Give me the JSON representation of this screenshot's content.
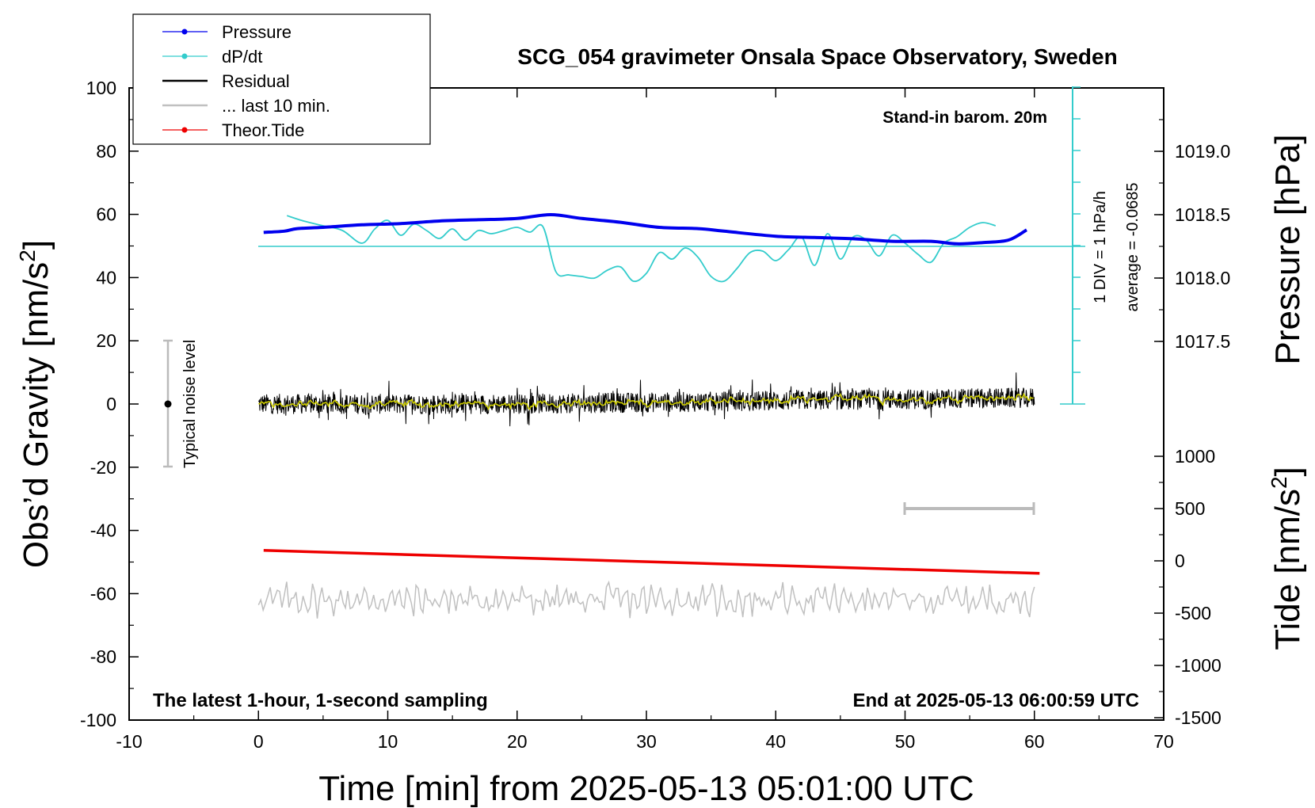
{
  "chart_data": {
    "type": "line",
    "title": "SCG_054 gravimeter Onsala Space Observatory, Sweden",
    "xlabel": "Time [min] from 2025-05-13 05:01:00 UTC",
    "ylabel": "Obs’d Gravity [nm/s",
    "ylabel_sup": "2",
    "ylabel_close": "]",
    "y2label": "Pressure [hPa]",
    "y3label": "Tide [nm/s",
    "y3label_sup": "2",
    "y3label_close": "]",
    "xlim": [
      -10,
      70
    ],
    "ylim": [
      -100,
      100
    ],
    "x_ticks": [
      "-10",
      "0",
      "10",
      "20",
      "30",
      "40",
      "50",
      "60",
      "70"
    ],
    "y_ticks": [
      "100",
      "80",
      "60",
      "40",
      "20",
      "0",
      "-20",
      "-40",
      "-60",
      "-80",
      "-100"
    ],
    "pressure_ticks": [
      "1019.0",
      "1018.5",
      "1018.0",
      "1017.5"
    ],
    "tide_ticks": [
      "1000",
      "500",
      "0",
      "-500",
      "-1000",
      "-1500"
    ],
    "legend": {
      "position": "top-left",
      "entries": [
        {
          "label": "Pressure",
          "color": "#0000ee",
          "marker": true
        },
        {
          "label": "dP/dt",
          "color": "#33cccc",
          "marker": true
        },
        {
          "label": "Residual",
          "color": "#000000",
          "marker": false
        },
        {
          "label": "... last 10 min.",
          "color": "#c0c0c0",
          "marker": false
        },
        {
          "label": "Theor.Tide",
          "color": "#ee0000",
          "marker": true
        }
      ]
    },
    "annotations": {
      "barometer": "Stand-in barom. 20m",
      "dpdt_scale": "1 DIV = 1 hPa/h",
      "dpdt_average": "average = -0.0685",
      "noise": "Typical noise level",
      "bottom_left": "The latest 1-hour, 1-second sampling",
      "bottom_right": "End at 2025-05-13 06:00:59 UTC"
    },
    "series": [
      {
        "name": "Pressure",
        "unit": "hPa",
        "color": "#0000ee",
        "x": [
          0.4,
          2,
          3,
          5,
          8,
          11,
          14,
          17,
          20,
          22.6,
          25,
          28,
          31,
          34,
          36,
          40,
          43,
          46,
          49,
          52,
          54,
          56,
          58,
          59.4
        ],
        "y": [
          1018.36,
          1018.37,
          1018.39,
          1018.4,
          1018.42,
          1018.43,
          1018.45,
          1018.46,
          1018.47,
          1018.5,
          1018.47,
          1018.44,
          1018.4,
          1018.39,
          1018.37,
          1018.33,
          1018.32,
          1018.31,
          1018.29,
          1018.29,
          1018.27,
          1018.28,
          1018.3,
          1018.38
        ]
      },
      {
        "name": "dP/dt",
        "unit": "hPa/h",
        "color": "#33cccc",
        "x": [
          2.2,
          3.5,
          5,
          6.5,
          8,
          9,
          10,
          11,
          12,
          13,
          14,
          15,
          16,
          17,
          18,
          19,
          20,
          21,
          22,
          23,
          24,
          25,
          26,
          27,
          28,
          29,
          30,
          31,
          32,
          33,
          34,
          35,
          36,
          37,
          38,
          39,
          40,
          41,
          42,
          43,
          44,
          45,
          46,
          47,
          48,
          49,
          50,
          51,
          52,
          53,
          54,
          55,
          56,
          57
        ],
        "y": [
          0.97,
          0.8,
          0.65,
          0.5,
          0.1,
          0.55,
          0.82,
          0.35,
          0.7,
          0.5,
          0.25,
          0.55,
          0.2,
          0.5,
          0.4,
          0.5,
          0.6,
          0.45,
          0.62,
          -0.8,
          -0.9,
          -0.95,
          -1.0,
          -0.75,
          -0.65,
          -1.1,
          -0.85,
          -0.2,
          -0.4,
          -0.05,
          -0.35,
          -0.95,
          -1.1,
          -0.7,
          -0.2,
          -0.15,
          -0.45,
          -0.1,
          0.3,
          -0.6,
          0.4,
          -0.4,
          0.3,
          0.2,
          -0.3,
          0.35,
          0.1,
          -0.25,
          -0.5,
          0.1,
          0.3,
          0.6,
          0.75,
          0.65
        ]
      },
      {
        "name": "Residual",
        "unit": "nm/s2",
        "color": "#000000",
        "x": [
          0,
          10,
          20,
          30,
          40,
          50,
          60
        ],
        "y": [
          0,
          0,
          0,
          0.5,
          1,
          1.5,
          2
        ]
      },
      {
        "name": "Theor.Tide",
        "unit": "nm/s2",
        "color": "#ee0000",
        "x": [
          0.4,
          60.4
        ],
        "y": [
          100,
          -120
        ]
      }
    ]
  }
}
